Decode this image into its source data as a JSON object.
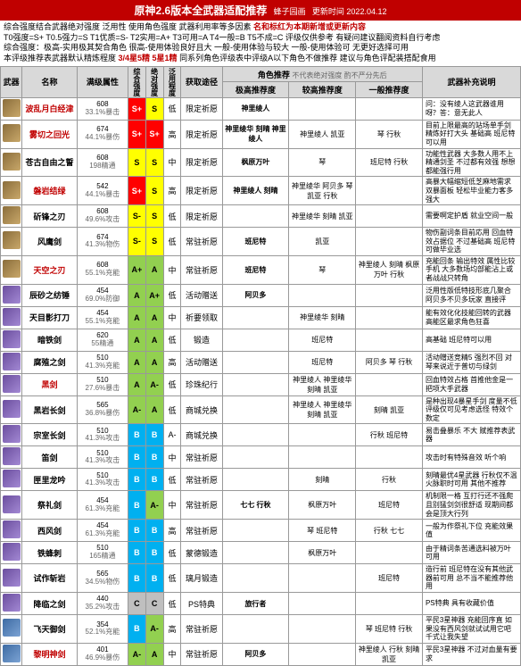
{
  "header": {
    "title": "原神2.6版本全武器适配推荐",
    "author": "蜂子园画",
    "date": "更新时间 2022.04.12"
  },
  "subtitle": {
    "line1": "综合强度结合武器绝对强度 泛用性 使用角色强度 武器利用率等多因素",
    "line1_red": "名和标红为本期新增或更新内容",
    "line2_prefix": "T0强度=S+ T0.5强力=S T1优质=S- T2实用=A+ T3可用=A T4一般=B T5不成=C",
    "line2_suffix": "评级仅供参考 有疑问建议翻阅资料自行考虑",
    "line3": "综合强度：极高-实用极其契合角色 很高-使用体验良好且大 一般-使用体验与较大 一般-使用体验可 无更好选择可用",
    "line4_prefix": "本评级推荐表武器默认精炼程度",
    "line4_red": "3/4星5精 5星1精",
    "line4_suffix": "同系列角色评级表中评级A以下角色不做推荐 建议与角色评配装搭配食用"
  },
  "columns": {
    "weapon_icon": "武器",
    "name": "名称",
    "stats": "满级属性",
    "overall": "综合强度",
    "absolute": "绝对强度",
    "usage": "泛用程度",
    "source": "获取途径",
    "role_header": "角色推荐",
    "role_sub": "不代表绝对强度 酌不严分先后",
    "role_high": "极高推荐度",
    "role_mid": "较高推荐度",
    "role_low": "一般推荐度",
    "note": "武器补充说明"
  },
  "rows": [
    {
      "icon": "g",
      "name": "波乱月白经津",
      "nameRed": true,
      "atk": "608",
      "sub": "33.1%暴击",
      "t1": "S+",
      "t2": "S",
      "usage": "低",
      "src": "限定祈愿",
      "r1": "神里绫人",
      "r2": "",
      "r3": "",
      "note": "问：没有绫人这武器谁用呀？答：意无此人"
    },
    {
      "icon": "g",
      "name": "雾切之回光",
      "nameRed": true,
      "atk": "674",
      "sub": "44.1%暴伤",
      "t1": "S+",
      "t2": "S+",
      "usage": "高",
      "src": "限定祈愿",
      "r1": "神里绫华 刻晴 神里绫人",
      "r2": "神里绫人 凯亚",
      "r3": "琴 行秋",
      "note": "目前上限最高的站场单手剑 精炼好打大头 基础高 班尼特可以用"
    },
    {
      "icon": "g",
      "name": "苍古自由之誓",
      "nameRed": false,
      "atk": "608",
      "sub": "198精通",
      "t1": "S",
      "t2": "S",
      "usage": "中",
      "src": "限定祈愿",
      "r1": "枫原万叶",
      "r2": "琴",
      "r3": "班尼特 行秋",
      "note": "功能性武器 大多数人用不上精通剑圣 不过都有效强 想想都能强行用"
    },
    {
      "icon": "g",
      "name": "磐岩结绿",
      "nameRed": true,
      "atk": "542",
      "sub": "44.1%暴击",
      "t1": "S+",
      "t2": "S",
      "usage": "高",
      "src": "限定祈愿",
      "r1": "神里绫人 刻晴",
      "r2": "神里绫华 阿贝多 琴 凯亚 行秋",
      "r3": "",
      "note": "高暴大幅缩短低芝麻地需求 双暴面板 轻松毕业能力客多强大"
    },
    {
      "icon": "g",
      "name": "斫锋之刃",
      "nameRed": false,
      "atk": "608",
      "sub": "49.6%攻击",
      "t1": "S-",
      "t2": "S",
      "usage": "低",
      "src": "限定祈愿",
      "r1": "",
      "r2": "神里绫华 刻晴 凯亚",
      "r3": "",
      "note": "需要啊定护盾 就业空间一般"
    },
    {
      "icon": "g",
      "name": "风鹰剑",
      "nameRed": false,
      "atk": "674",
      "sub": "41.3%物伤",
      "t1": "S-",
      "t2": "S",
      "usage": "低",
      "src": "常驻祈愿",
      "r1": "班尼特",
      "r2": "凯亚",
      "r3": "",
      "note": "物伤副词条目前応用 回血特效占据位 不过基础高 班尼特可做毕业选"
    },
    {
      "icon": "g",
      "name": "天空之刃",
      "nameRed": true,
      "atk": "608",
      "sub": "55.1%充能",
      "t1": "A+",
      "t2": "A",
      "usage": "中",
      "src": "常驻祈愿",
      "r1": "班尼特",
      "r2": "琴",
      "r3": "神里绫人 刻晴 枫原万叶 行秋",
      "note": "充能回条 输出特效 属性比较手机 大多数场均部能沾上或者战战只转角"
    },
    {
      "icon": "p",
      "name": "辰砂之纺锤",
      "nameRed": false,
      "atk": "454",
      "sub": "69.0%防御",
      "t1": "A",
      "t2": "A+",
      "usage": "低",
      "src": "活动赠送",
      "r1": "阿贝多",
      "r2": "",
      "r3": "",
      "note": "泛用性版低特技形底几聚合阿贝多不贝多玩家 直接评"
    },
    {
      "icon": "p",
      "name": "天目影打刀",
      "nameRed": false,
      "atk": "454",
      "sub": "55.1%充能",
      "t1": "A",
      "t2": "A",
      "usage": "中",
      "src": "祈要领取",
      "r1": "",
      "r2": "神里绫华 刻晴",
      "r3": "",
      "note": "能有效化化技能回转的武器 高能区最求角色狂喜"
    },
    {
      "icon": "p",
      "name": "暗铁剑",
      "nameRed": false,
      "atk": "620",
      "sub": "55精通",
      "t1": "A",
      "t2": "A",
      "usage": "低",
      "src": "锻造",
      "r1": "",
      "r2": "班尼特",
      "r3": "",
      "note": "高基础 班尼特可以用"
    },
    {
      "icon": "p",
      "name": "腐殖之剑",
      "nameRed": false,
      "atk": "510",
      "sub": "41.3%充能",
      "t1": "A",
      "t2": "A",
      "usage": "高",
      "src": "活动赠送",
      "r1": "",
      "r2": "班尼特",
      "r3": "阿贝多 琴 行秋",
      "note": "活动赠送竞精5 强烈不回 对琴来说近于普切与绿剑"
    },
    {
      "icon": "p",
      "name": "黑剑",
      "nameRed": true,
      "atk": "510",
      "sub": "27.6%暴击",
      "t1": "A",
      "t2": "A-",
      "usage": "低",
      "src": "珍珠纪行",
      "r1": "",
      "r2": "神里绫人 神里绫华 刻晴 凯亚",
      "r3": "",
      "note": "回血特效占格 首推他金是一把项大手武器"
    },
    {
      "icon": "p",
      "name": "黑岩长剑",
      "nameRed": false,
      "atk": "565",
      "sub": "36.8%暴伤",
      "t1": "A-",
      "t2": "A",
      "usage": "低",
      "src": "商城兑换",
      "r1": "",
      "r2": "神里绫人 神里绫华 刻晴 凯亚",
      "r3": "刻晴 凯亚",
      "note": "是种出现4暴星手剑 度量不低 评级仅可见考虑选怪 特效个数定"
    },
    {
      "icon": "p",
      "name": "宗室长剑",
      "nameRed": false,
      "atk": "510",
      "sub": "41.3%攻击",
      "t1": "B",
      "t2": "B",
      "usage": "A-",
      "src": "商城兑换",
      "r1": "",
      "r2": "",
      "r3": "行秋 班尼特",
      "note": "易击叠暴乐 不大 赋推荐表武器"
    },
    {
      "icon": "p",
      "name": "笛剑",
      "nameRed": false,
      "atk": "510",
      "sub": "41.3%攻击",
      "t1": "B",
      "t2": "B",
      "usage": "中",
      "src": "常驻祈愿",
      "r1": "",
      "r2": "",
      "r3": "",
      "note": "攻击时有特殊音效 听个响"
    },
    {
      "icon": "p",
      "name": "匣里龙吟",
      "nameRed": false,
      "atk": "510",
      "sub": "41.3%攻击",
      "t1": "B",
      "t2": "B",
      "usage": "低",
      "src": "常驻祈愿",
      "r1": "",
      "r2": "刻晴",
      "r3": "行秋",
      "note": "刻晴最优4星武器 行秋仅不温火脉职时可用 其他不推荐"
    },
    {
      "icon": "p",
      "name": "祭礼剑",
      "nameRed": false,
      "atk": "454",
      "sub": "61.3%充能",
      "t1": "B",
      "t2": "A-",
      "usage": "中",
      "src": "常驻祈愿",
      "r1": "七七 行秋",
      "r2": "枫原万叶",
      "r3": "班尼特",
      "note": "机制限一格 互打行还不强爬且别猛剑剑很舒适 现期间都会是顶大行列"
    },
    {
      "icon": "p",
      "name": "西风剑",
      "nameRed": false,
      "atk": "454",
      "sub": "61.3%充能",
      "t1": "B",
      "t2": "B",
      "usage": "高",
      "src": "常驻祈愿",
      "r1": "",
      "r2": "琴 班尼特",
      "r3": "行秋 七七",
      "note": "一般为作祭礼下位 充能效果值"
    },
    {
      "icon": "p",
      "name": "铁蜂刺",
      "nameRed": false,
      "atk": "510",
      "sub": "165精通",
      "t1": "B",
      "t2": "B",
      "usage": "低",
      "src": "蒙德锻造",
      "r1": "",
      "r2": "枫原万叶",
      "r3": "",
      "note": "由于精词条苦通选料被万叶可用"
    },
    {
      "icon": "p",
      "name": "试作斩岩",
      "nameRed": false,
      "atk": "565",
      "sub": "34.5%物伤",
      "t1": "B",
      "t2": "B",
      "usage": "低",
      "src": "璃月锻造",
      "r1": "",
      "r2": "",
      "r3": "班尼特",
      "note": "造行前 班尼特在没有其他武器前可用 总不当不能推荐他用"
    },
    {
      "icon": "p",
      "name": "降临之剑",
      "nameRed": false,
      "atk": "440",
      "sub": "35.2%攻击",
      "t1": "C",
      "t2": "C",
      "usage": "低",
      "src": "PS特典",
      "r1": "旅行者",
      "r2": "",
      "r3": "",
      "note": "PS特典 具有收藏价值"
    },
    {
      "icon": "b",
      "name": "飞天御剑",
      "nameRed": false,
      "atk": "354",
      "sub": "52.1%充能",
      "t1": "B",
      "t2": "A-",
      "usage": "高",
      "src": "常驻祈愿",
      "r1": "",
      "r2": "",
      "r3": "琴 班尼特 行秋",
      "note": "平民3星神器 充能回序直 如果没有西风剑就试试用它吧 千式让我失望"
    },
    {
      "icon": "b",
      "name": "黎明神剑",
      "nameRed": true,
      "atk": "401",
      "sub": "46.9%暴伤",
      "t1": "A-",
      "t2": "A",
      "usage": "中",
      "src": "常驻祈愿",
      "r1": "阿贝多",
      "r2": "",
      "r3": "神里绫人 行秋 刻晴 凯亚",
      "note": "平民3星神器 不过对血量有要求"
    }
  ]
}
